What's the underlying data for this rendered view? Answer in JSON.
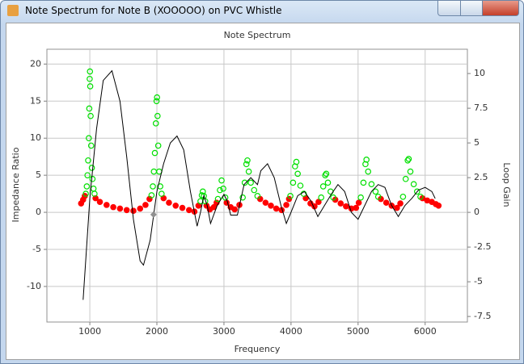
{
  "window": {
    "title": "Note Spectrum for Note B (XOOOOO) on PVC Whistle"
  },
  "chart_data": {
    "type": "scatter",
    "title": "Note Spectrum",
    "x_label": "Frequency",
    "y_label": "Impedance Ratio",
    "y2_label": "Loop Gain",
    "xlim": [
      360,
      6630
    ],
    "ylim": [
      -14.8,
      22
    ],
    "y2lim": [
      -7.9,
      11.75
    ],
    "xticks": [
      1000,
      2000,
      3000,
      4000,
      5000,
      6000
    ],
    "yticks": [
      -10,
      -5,
      0,
      5,
      10,
      15,
      20
    ],
    "y2ticks": [
      -7.5,
      -5,
      -2.5,
      0,
      2.5,
      5,
      7.5,
      10
    ],
    "grid": true,
    "series": [
      {
        "type": "scatter",
        "color": "#ff0000",
        "filled": true,
        "x": [
          870,
          900,
          925,
          1085,
          1150,
          1250,
          1350,
          1450,
          1550,
          1650,
          1750,
          1830,
          1890,
          2100,
          2180,
          2280,
          2380,
          2480,
          2560,
          2620,
          2740,
          2790,
          2850,
          2890,
          3040,
          3100,
          3160,
          3230,
          3540,
          3620,
          3700,
          3780,
          3860,
          3930,
          3970,
          4220,
          4290,
          4350,
          4410,
          4660,
          4740,
          4820,
          4900,
          4970,
          5010,
          5340,
          5420,
          5500,
          5580,
          5630,
          5960,
          6030,
          6100,
          6160,
          6200
        ],
        "values": [
          1.2,
          1.7,
          2.2,
          1.9,
          1.4,
          1.0,
          0.7,
          0.5,
          0.3,
          0.2,
          0.5,
          1.0,
          1.8,
          1.9,
          1.3,
          0.9,
          0.6,
          0.3,
          0.1,
          0.9,
          0.9,
          0.4,
          0.7,
          1.3,
          1.3,
          0.7,
          0.4,
          1.0,
          1.8,
          1.3,
          0.9,
          0.5,
          0.3,
          1.0,
          1.8,
          1.9,
          1.2,
          0.8,
          1.4,
          1.7,
          1.2,
          0.8,
          0.5,
          0.6,
          1.3,
          1.8,
          1.3,
          0.9,
          0.6,
          1.2,
          1.9,
          1.6,
          1.4,
          1.1,
          0.9
        ]
      },
      {
        "type": "scatter",
        "color": "#00e000",
        "filled": false,
        "x": [
          940,
          955,
          965,
          975,
          985,
          992,
          998,
          1002,
          1006,
          1012,
          1020,
          1030,
          1040,
          1055,
          1070,
          1920,
          1940,
          1955,
          1970,
          1985,
          1995,
          2002,
          2010,
          2020,
          2035,
          2050,
          2070,
          2650,
          2670,
          2685,
          2700,
          2720,
          2910,
          2940,
          2965,
          2990,
          3020,
          3280,
          3310,
          3335,
          3350,
          3370,
          3400,
          3450,
          3500,
          3990,
          4030,
          4060,
          4080,
          4100,
          4140,
          4190,
          4450,
          4480,
          4510,
          4525,
          4550,
          4590,
          4630,
          5040,
          5080,
          5110,
          5125,
          5150,
          5200,
          5260,
          5300,
          5670,
          5710,
          5740,
          5755,
          5780,
          5830,
          5880,
          5930
        ],
        "values": [
          2.5,
          3.5,
          5,
          7,
          10,
          14,
          18,
          19,
          17,
          13,
          9,
          6,
          4.5,
          3.2,
          2.5,
          2.3,
          3.5,
          5.5,
          8,
          12,
          15,
          15.5,
          13,
          9,
          5.5,
          3.5,
          2.5,
          1.5,
          2.3,
          2.8,
          2.2,
          1.5,
          1.8,
          3,
          4.3,
          3.2,
          2,
          2,
          4,
          6.5,
          7,
          5.5,
          4,
          3,
          2.2,
          2.2,
          4,
          6.2,
          6.8,
          5.2,
          3.6,
          2.5,
          2,
          3.5,
          5,
          5.2,
          4,
          2.8,
          2,
          2,
          4,
          6.5,
          7.1,
          5.5,
          3.8,
          2.8,
          2.1,
          2.1,
          4.5,
          7,
          7.2,
          5.5,
          3.8,
          2.8,
          2.1
        ]
      },
      {
        "type": "line",
        "color": "#000000",
        "axis": "y2",
        "x": [
          900,
          1000,
          1100,
          1200,
          1330,
          1450,
          1550,
          1650,
          1750,
          1800,
          1900,
          2000,
          2100,
          2200,
          2300,
          2400,
          2500,
          2600,
          2650,
          2700,
          2750,
          2800,
          2900,
          3000,
          3050,
          3100,
          3200,
          3300,
          3400,
          3500,
          3550,
          3650,
          3750,
          3850,
          3930,
          4000,
          4100,
          4200,
          4300,
          4400,
          4500,
          4600,
          4700,
          4800,
          4900,
          5000,
          5100,
          5200,
          5300,
          5400,
          5500,
          5600,
          5700,
          5800,
          5900,
          6000,
          6100,
          6150
        ],
        "values": [
          -6.3,
          1,
          6,
          9.5,
          10.2,
          8,
          4,
          -0.5,
          -3.5,
          -3.8,
          -2,
          1.5,
          3.5,
          5,
          5.5,
          4.5,
          1.5,
          -1,
          0,
          1.2,
          0.5,
          -0.8,
          0.5,
          1.3,
          0.8,
          -0.2,
          -0.2,
          2,
          2.5,
          2,
          3,
          3.5,
          2.5,
          0.5,
          -0.8,
          0,
          1.2,
          1.5,
          0.8,
          -0.3,
          0.5,
          1.3,
          2,
          1.5,
          0,
          -0.5,
          0.5,
          1.5,
          2,
          1.8,
          0.5,
          -0.3,
          0.5,
          1,
          1.6,
          1.8,
          1.5,
          1
        ]
      },
      {
        "type": "diamond",
        "color": "#909090",
        "x": [
          1950
        ],
        "values": [
          -0.3
        ]
      }
    ]
  }
}
